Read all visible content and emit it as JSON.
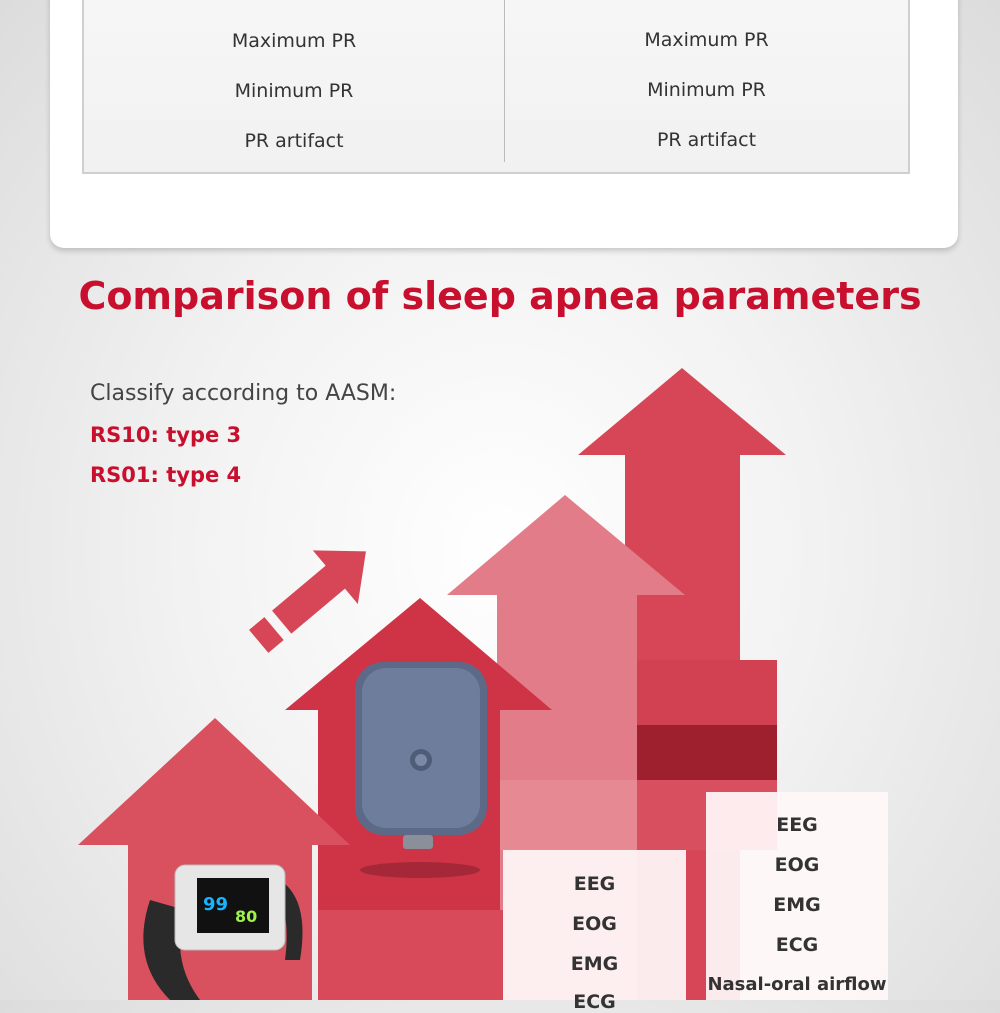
{
  "table": {
    "left_column": [
      "Maximum PR",
      "Minimum PR",
      "PR artifact"
    ],
    "right_column": [
      "Maximum PR",
      "Minimum PR",
      "PR artifact"
    ]
  },
  "title": "Comparison of sleep apnea parameters",
  "classification": {
    "intro": "Classify according to AASM:",
    "items": [
      "RS10: type 3",
      "RS01: type 4"
    ]
  },
  "device_screen": {
    "spo2": "99",
    "pr": "80"
  },
  "box_type4": [
    "EEG",
    "EOG",
    "EMG",
    "ECG"
  ],
  "box_type3": [
    "EEG",
    "EOG",
    "EMG",
    "ECG",
    "Nasal-oral airflow"
  ],
  "colors": {
    "accent": "#c8102e",
    "arrow_dark": "#d64657",
    "arrow_light": "#e27c88"
  }
}
